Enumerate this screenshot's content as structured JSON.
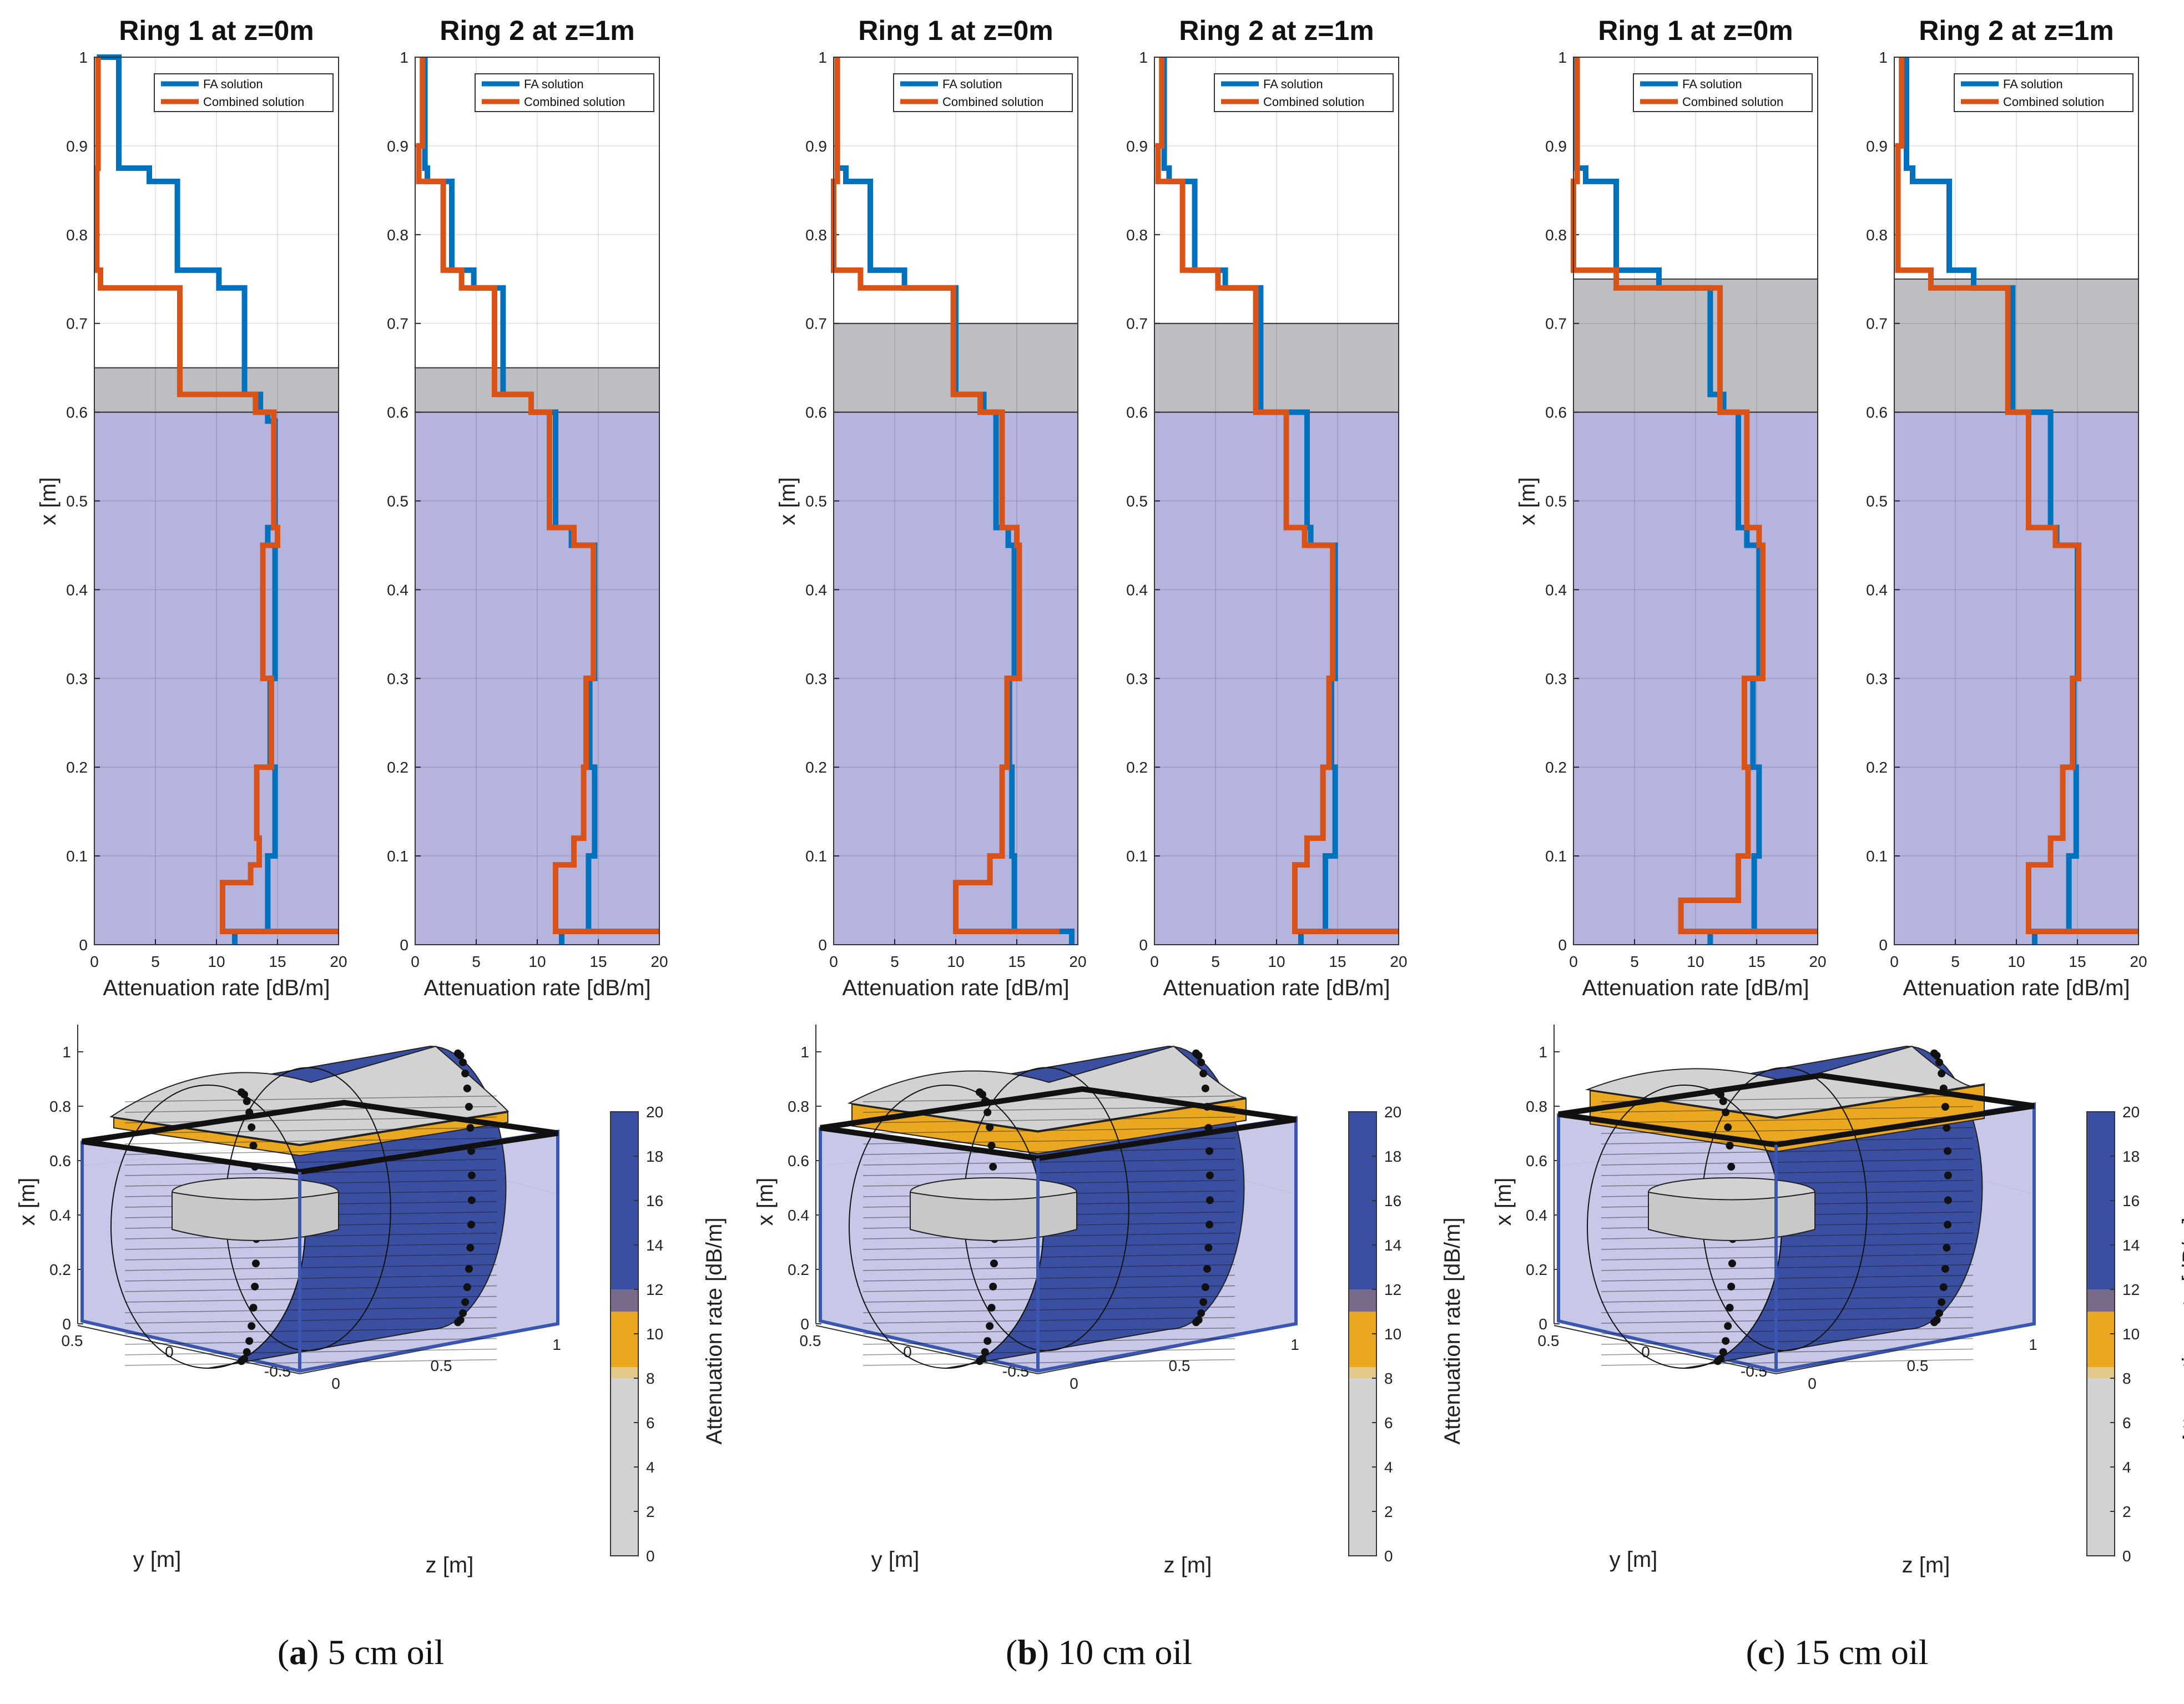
{
  "figure": {
    "colors": {
      "fa": "#0072BD",
      "combined": "#D95319",
      "water": "#B4B4DF",
      "oil": "#BEBEC2",
      "hi": "#3B4FA0",
      "mid": "#EAA820",
      "low": "#D2D2D2"
    },
    "captions": [
      {
        "letter": "a",
        "text": "5 cm oil"
      },
      {
        "letter": "b",
        "text": "10 cm oil"
      },
      {
        "letter": "c",
        "text": "15 cm oil"
      }
    ],
    "colorbar": {
      "label": "Attenuation rate [dB/m]",
      "ticks": [
        "0",
        "2",
        "4",
        "6",
        "8",
        "10",
        "12",
        "14",
        "16",
        "18",
        "20"
      ]
    },
    "iso": {
      "xlabel": "x [m]",
      "ylabel": "y [m]",
      "zlabel": "z [m]",
      "x_ticks": [
        "0",
        "0.2",
        "0.4",
        "0.6",
        "0.8",
        "1"
      ],
      "y_ticks": [
        "0.5",
        "0",
        "-0.5"
      ],
      "z_ticks": [
        "0",
        "0.5",
        "1"
      ]
    }
  },
  "chart_data": [
    {
      "type": "line",
      "panel": "a",
      "subplot": 1,
      "title": "Ring 1 at z=0m",
      "xlabel": "Attenuation rate [dB/m]",
      "ylabel": "x [m]",
      "xlim": [
        0,
        20
      ],
      "ylim": [
        0,
        1
      ],
      "x_ticks": [
        "0",
        "5",
        "10",
        "15",
        "20"
      ],
      "y_ticks": [
        "0",
        "0.1",
        "0.2",
        "0.3",
        "0.4",
        "0.5",
        "0.6",
        "0.7",
        "0.8",
        "0.9",
        "1"
      ],
      "water_top": 0.6,
      "oil_top": 0.65,
      "legend": [
        "FA solution",
        "Combined solution"
      ],
      "series": [
        {
          "name": "FA solution",
          "x": [
            11.5,
            11.5,
            14.2,
            14.2,
            14.8,
            14.8,
            14.4,
            14.4,
            14.8,
            14.8,
            14.2,
            14.2,
            14.8,
            14.8,
            14.2,
            14.2,
            13.6,
            13.6,
            12.3,
            12.3,
            12.3,
            10.2,
            10.2,
            6.8,
            6.8,
            4.5,
            4.5,
            2.0,
            2.0,
            0.5,
            0.5,
            0.2,
            0.2
          ],
          "y": [
            0,
            0.015,
            0.015,
            0.1,
            0.1,
            0.2,
            0.2,
            0.3,
            0.3,
            0.45,
            0.45,
            0.47,
            0.47,
            0.59,
            0.59,
            0.6,
            0.6,
            0.62,
            0.62,
            0.74,
            0.74,
            0.74,
            0.76,
            0.76,
            0.86,
            0.86,
            0.875,
            0.875,
            1.0,
            1.0,
            1.0,
            1.0,
            1.0
          ]
        },
        {
          "name": "Combined solution",
          "x": [
            20,
            10.5,
            10.5,
            12.8,
            12.8,
            13.5,
            13.5,
            13.3,
            13.3,
            14.5,
            14.5,
            13.8,
            13.8,
            15.0,
            15.0,
            14.7,
            14.7,
            13.2,
            13.2,
            12.5,
            12.5,
            10.0,
            10.0,
            7.0,
            7.0,
            7.0,
            0.5,
            0.5,
            0.2,
            0.2,
            0.3,
            0.3
          ],
          "y": [
            0.015,
            0.015,
            0.07,
            0.07,
            0.09,
            0.09,
            0.12,
            0.12,
            0.2,
            0.2,
            0.3,
            0.3,
            0.45,
            0.45,
            0.47,
            0.47,
            0.6,
            0.6,
            0.62,
            0.62,
            0.62,
            0.62,
            0.62,
            0.62,
            0.74,
            0.74,
            0.74,
            0.76,
            0.76,
            0.875,
            0.875,
            1.0
          ]
        }
      ]
    },
    {
      "type": "line",
      "panel": "a",
      "subplot": 2,
      "title": "Ring 2 at z=1m",
      "xlabel": "Attenuation rate [dB/m]",
      "ylabel": "",
      "xlim": [
        0,
        20
      ],
      "ylim": [
        0,
        1
      ],
      "x_ticks": [
        "0",
        "5",
        "10",
        "15",
        "20"
      ],
      "y_ticks": [
        "0",
        "0.1",
        "0.2",
        "0.3",
        "0.4",
        "0.5",
        "0.6",
        "0.7",
        "0.8",
        "0.9",
        "1"
      ],
      "water_top": 0.6,
      "oil_top": 0.65,
      "legend": [
        "FA solution",
        "Combined solution"
      ],
      "series": [
        {
          "name": "FA solution",
          "x": [
            12.0,
            12.0,
            14.2,
            14.2,
            14.7,
            14.7,
            14.3,
            14.3,
            14.7,
            14.7,
            12.8,
            12.8,
            11.5,
            11.5,
            9.5,
            9.5,
            7.2,
            7.2,
            4.8,
            4.8,
            3.0,
            3.0,
            1.0,
            1.0,
            0.8,
            0.8
          ],
          "y": [
            0,
            0.015,
            0.015,
            0.1,
            0.1,
            0.2,
            0.2,
            0.3,
            0.3,
            0.45,
            0.45,
            0.47,
            0.47,
            0.6,
            0.6,
            0.62,
            0.62,
            0.74,
            0.74,
            0.76,
            0.76,
            0.86,
            0.86,
            0.875,
            0.875,
            1.0
          ]
        },
        {
          "name": "Combined solution",
          "x": [
            20,
            11.5,
            11.5,
            13.0,
            13.0,
            13.8,
            13.8,
            14.0,
            14.0,
            14.6,
            14.6,
            13.0,
            13.0,
            11.0,
            11.0,
            9.5,
            9.5,
            6.5,
            6.5,
            3.8,
            3.8,
            2.3,
            2.3,
            0.3,
            0.3,
            0.6,
            0.6
          ],
          "y": [
            0.015,
            0.015,
            0.09,
            0.09,
            0.12,
            0.12,
            0.2,
            0.2,
            0.3,
            0.3,
            0.45,
            0.45,
            0.47,
            0.47,
            0.6,
            0.6,
            0.62,
            0.62,
            0.74,
            0.74,
            0.76,
            0.76,
            0.86,
            0.86,
            0.9,
            0.9,
            1.0
          ]
        }
      ]
    },
    {
      "type": "line",
      "panel": "b",
      "subplot": 1,
      "title": "Ring 1 at z=0m",
      "xlabel": "Attenuation rate [dB/m]",
      "ylabel": "x [m]",
      "xlim": [
        0,
        20
      ],
      "ylim": [
        0,
        1
      ],
      "x_ticks": [
        "0",
        "5",
        "10",
        "15",
        "20"
      ],
      "y_ticks": [
        "0",
        "0.1",
        "0.2",
        "0.3",
        "0.4",
        "0.5",
        "0.6",
        "0.7",
        "0.8",
        "0.9",
        "1"
      ],
      "water_top": 0.6,
      "oil_top": 0.7,
      "legend": [
        "FA solution",
        "Combined solution"
      ],
      "series": [
        {
          "name": "FA solution",
          "x": [
            19.5,
            19.5,
            14.8,
            14.8,
            14.6,
            14.6,
            14.4,
            14.4,
            14.8,
            14.8,
            14.3,
            14.3,
            13.3,
            13.3,
            12.3,
            12.3,
            10.0,
            10.0,
            5.8,
            5.8,
            3.0,
            3.0,
            1.0,
            1.0,
            0.3,
            0.3
          ],
          "y": [
            0,
            0.015,
            0.015,
            0.1,
            0.1,
            0.2,
            0.2,
            0.3,
            0.3,
            0.45,
            0.45,
            0.47,
            0.47,
            0.6,
            0.6,
            0.62,
            0.62,
            0.74,
            0.74,
            0.76,
            0.76,
            0.86,
            0.86,
            0.875,
            0.875,
            1.0
          ]
        },
        {
          "name": "Combined solution",
          "x": [
            18.5,
            10.0,
            10.0,
            12.8,
            12.8,
            13.8,
            13.8,
            14.2,
            14.2,
            15.2,
            15.2,
            15.0,
            15.0,
            13.8,
            13.8,
            12.0,
            12.0,
            9.8,
            9.8,
            2.2,
            2.2,
            0.0,
            0.0,
            0.3,
            0.3
          ],
          "y": [
            0.015,
            0.015,
            0.07,
            0.07,
            0.1,
            0.1,
            0.2,
            0.2,
            0.3,
            0.3,
            0.45,
            0.45,
            0.47,
            0.47,
            0.6,
            0.6,
            0.62,
            0.62,
            0.74,
            0.74,
            0.76,
            0.76,
            0.86,
            0.86,
            1.0
          ]
        }
      ]
    },
    {
      "type": "line",
      "panel": "b",
      "subplot": 2,
      "title": "Ring 2 at z=1m",
      "xlabel": "Attenuation rate [dB/m]",
      "ylabel": "",
      "xlim": [
        0,
        20
      ],
      "ylim": [
        0,
        1
      ],
      "x_ticks": [
        "0",
        "5",
        "10",
        "15",
        "20"
      ],
      "y_ticks": [
        "0",
        "0.1",
        "0.2",
        "0.3",
        "0.4",
        "0.5",
        "0.6",
        "0.7",
        "0.8",
        "0.9",
        "1"
      ],
      "water_top": 0.6,
      "oil_top": 0.7,
      "legend": [
        "FA solution",
        "Combined solution"
      ],
      "series": [
        {
          "name": "FA solution",
          "x": [
            12.0,
            12.0,
            14.0,
            14.0,
            14.8,
            14.8,
            14.5,
            14.5,
            14.8,
            14.8,
            12.8,
            12.8,
            12.5,
            12.5,
            8.7,
            8.7,
            5.8,
            5.8,
            3.3,
            3.3,
            1.2,
            1.2,
            0.8,
            0.8
          ],
          "y": [
            0,
            0.015,
            0.015,
            0.1,
            0.1,
            0.2,
            0.2,
            0.3,
            0.3,
            0.45,
            0.45,
            0.47,
            0.47,
            0.6,
            0.6,
            0.74,
            0.74,
            0.76,
            0.76,
            0.86,
            0.86,
            0.875,
            0.875,
            1.0
          ]
        },
        {
          "name": "Combined solution",
          "x": [
            20,
            11.5,
            11.5,
            12.5,
            12.5,
            13.8,
            13.8,
            14.3,
            14.3,
            14.6,
            14.6,
            12.3,
            12.3,
            10.8,
            10.8,
            8.3,
            8.3,
            5.2,
            5.2,
            2.3,
            2.3,
            0.3,
            0.3,
            0.6,
            0.6
          ],
          "y": [
            0.015,
            0.015,
            0.09,
            0.09,
            0.12,
            0.12,
            0.2,
            0.2,
            0.3,
            0.3,
            0.45,
            0.45,
            0.47,
            0.47,
            0.6,
            0.6,
            0.74,
            0.74,
            0.76,
            0.76,
            0.86,
            0.86,
            0.9,
            0.9,
            1.0
          ]
        }
      ]
    },
    {
      "type": "line",
      "panel": "c",
      "subplot": 1,
      "title": "Ring 1 at z=0m",
      "xlabel": "Attenuation rate [dB/m]",
      "ylabel": "x [m]",
      "xlim": [
        0,
        20
      ],
      "ylim": [
        0,
        1
      ],
      "x_ticks": [
        "0",
        "5",
        "10",
        "15",
        "20"
      ],
      "y_ticks": [
        "0",
        "0.1",
        "0.2",
        "0.3",
        "0.4",
        "0.5",
        "0.6",
        "0.7",
        "0.8",
        "0.9",
        "1"
      ],
      "water_top": 0.6,
      "oil_top": 0.75,
      "legend": [
        "FA solution",
        "Combined solution"
      ],
      "series": [
        {
          "name": "FA solution",
          "x": [
            11.2,
            11.2,
            14.8,
            14.8,
            15.2,
            15.2,
            14.7,
            14.7,
            15.2,
            15.2,
            14.2,
            14.2,
            13.5,
            13.5,
            12.3,
            12.3,
            11.2,
            11.2,
            7.0,
            7.0,
            3.5,
            3.5,
            1.0,
            1.0,
            0.2,
            0.2
          ],
          "y": [
            0,
            0.015,
            0.015,
            0.1,
            0.1,
            0.2,
            0.2,
            0.3,
            0.3,
            0.45,
            0.45,
            0.47,
            0.47,
            0.6,
            0.6,
            0.62,
            0.62,
            0.74,
            0.74,
            0.76,
            0.76,
            0.86,
            0.86,
            0.875,
            0.875,
            1.0
          ]
        },
        {
          "name": "Combined solution",
          "x": [
            20,
            8.8,
            8.8,
            13.5,
            13.5,
            14.3,
            14.3,
            14.0,
            14.0,
            15.5,
            15.5,
            15.2,
            15.2,
            14.2,
            14.2,
            12.0,
            12.0,
            3.5,
            3.5,
            0.0,
            0.0,
            0.3,
            0.3
          ],
          "y": [
            0.015,
            0.015,
            0.05,
            0.05,
            0.1,
            0.1,
            0.2,
            0.2,
            0.3,
            0.3,
            0.45,
            0.45,
            0.47,
            0.47,
            0.6,
            0.6,
            0.74,
            0.74,
            0.76,
            0.76,
            0.86,
            0.86,
            1.0
          ]
        }
      ]
    },
    {
      "type": "line",
      "panel": "c",
      "subplot": 2,
      "title": "Ring 2 at z=1m",
      "xlabel": "Attenuation rate [dB/m]",
      "ylabel": "",
      "xlim": [
        0,
        20
      ],
      "ylim": [
        0,
        1
      ],
      "x_ticks": [
        "0",
        "5",
        "10",
        "15",
        "20"
      ],
      "y_ticks": [
        "0",
        "0.1",
        "0.2",
        "0.3",
        "0.4",
        "0.5",
        "0.6",
        "0.7",
        "0.8",
        "0.9",
        "1"
      ],
      "water_top": 0.6,
      "oil_top": 0.75,
      "legend": [
        "FA solution",
        "Combined solution"
      ],
      "series": [
        {
          "name": "FA solution",
          "x": [
            11.5,
            11.5,
            14.3,
            14.3,
            14.9,
            14.9,
            14.7,
            14.7,
            15.0,
            15.0,
            13.3,
            13.3,
            12.8,
            12.8,
            9.7,
            9.7,
            6.5,
            6.5,
            4.5,
            4.5,
            1.5,
            1.5,
            1.0,
            1.0
          ],
          "y": [
            0,
            0.015,
            0.015,
            0.1,
            0.1,
            0.2,
            0.2,
            0.3,
            0.3,
            0.45,
            0.45,
            0.47,
            0.47,
            0.6,
            0.6,
            0.74,
            0.74,
            0.76,
            0.76,
            0.86,
            0.86,
            0.875,
            0.875,
            1.0
          ]
        },
        {
          "name": "Combined solution",
          "x": [
            20,
            11.0,
            11.0,
            12.8,
            12.8,
            13.8,
            13.8,
            14.6,
            14.6,
            15.1,
            15.1,
            13.2,
            13.2,
            11.0,
            11.0,
            9.3,
            9.3,
            3.0,
            3.0,
            0.3,
            0.3,
            0.6,
            0.6
          ],
          "y": [
            0.015,
            0.015,
            0.09,
            0.09,
            0.12,
            0.12,
            0.2,
            0.2,
            0.3,
            0.3,
            0.45,
            0.45,
            0.47,
            0.47,
            0.6,
            0.6,
            0.74,
            0.74,
            0.76,
            0.76,
            0.9,
            0.9,
            1.0
          ]
        }
      ]
    }
  ]
}
